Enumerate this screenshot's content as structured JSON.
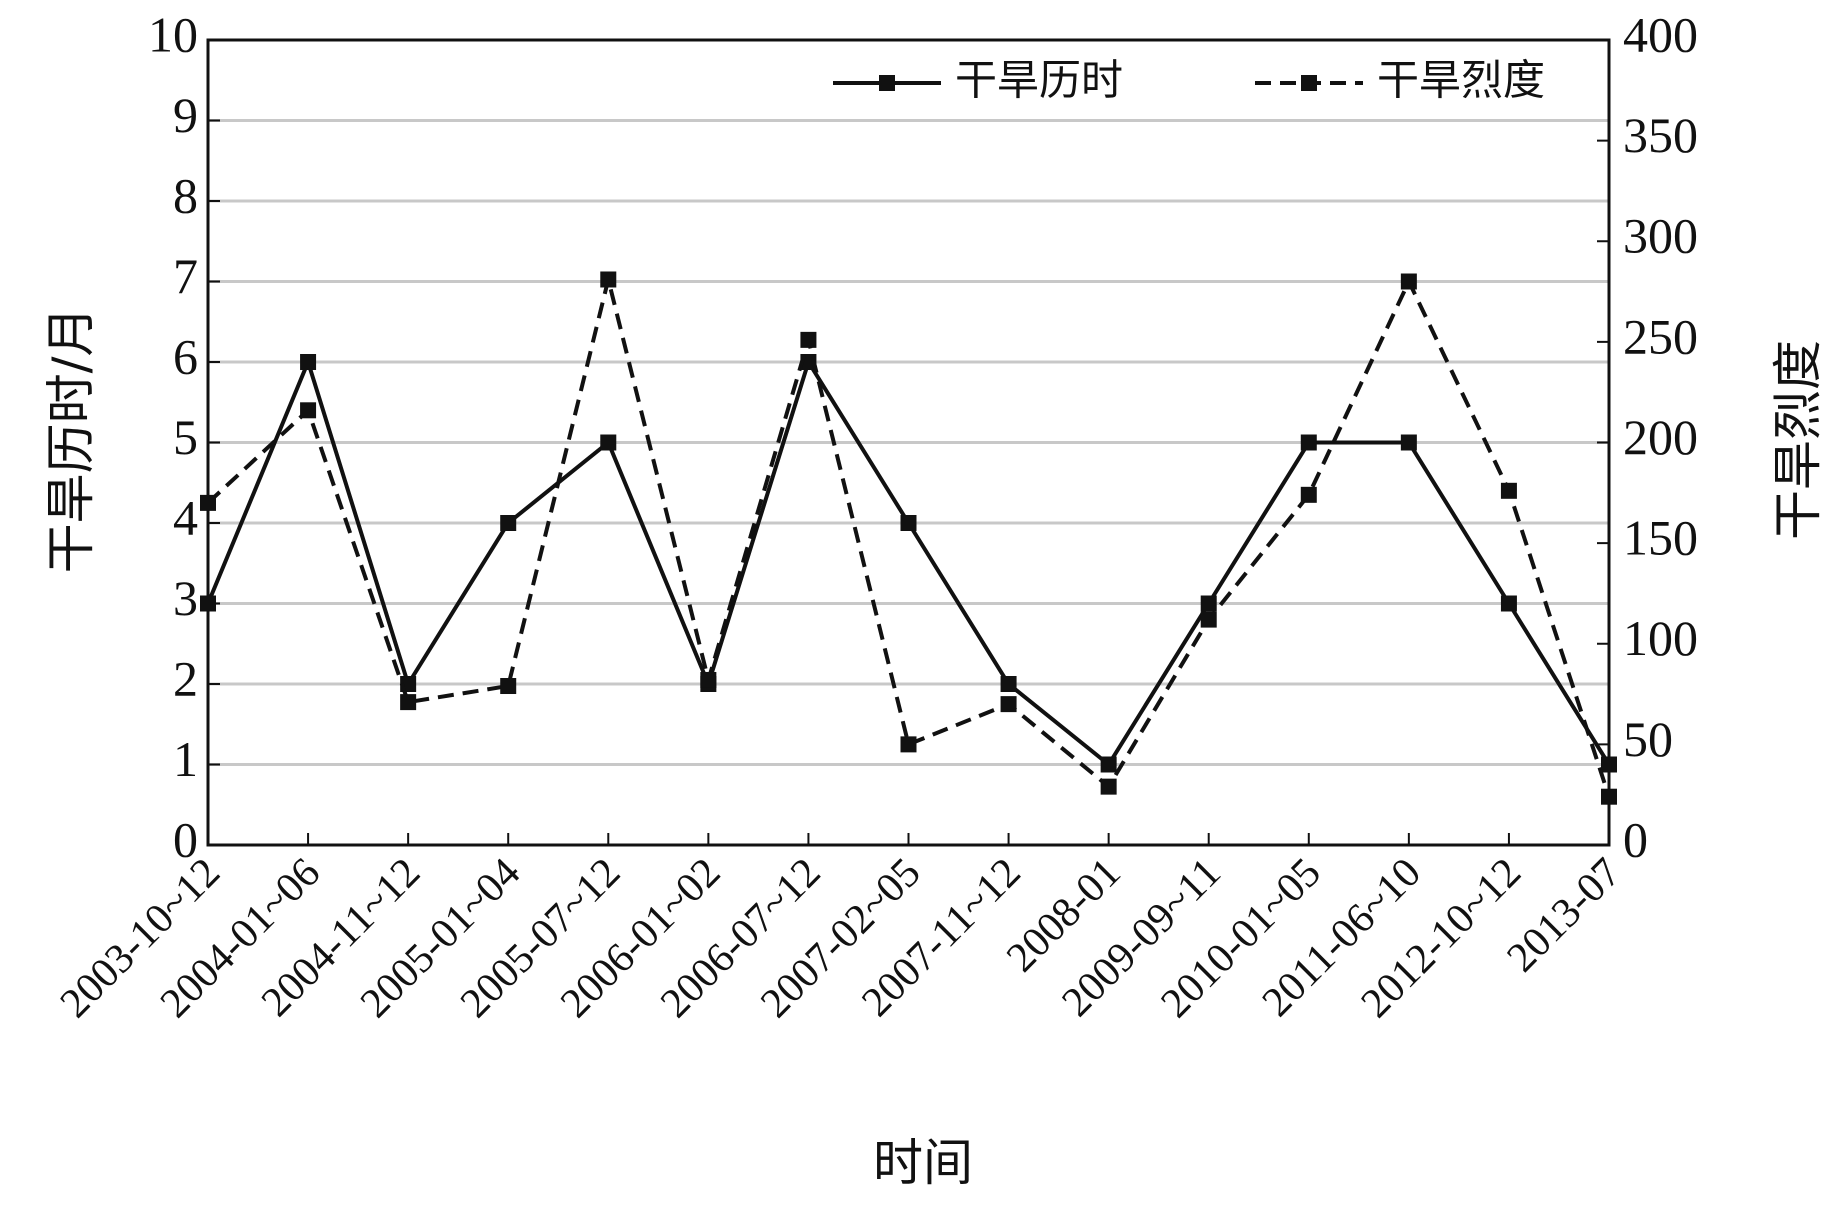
{
  "chart_data": {
    "type": "line",
    "x_label": "时间",
    "y_label": "干旱历时/月",
    "y2_label": "干旱烈度",
    "categories": [
      "2003-10~12",
      "2004-01~06",
      "2004-11~12",
      "2005-01~04",
      "2005-07~12",
      "2006-01~02",
      "2006-07~12",
      "2007-02~05",
      "2007-11~12",
      "2008-01",
      "2009-09~11",
      "2010-01~05",
      "2011-06~10",
      "2012-10~12",
      "2013-07"
    ],
    "series": [
      {
        "name": "干旱历时",
        "color": "#111111",
        "line_style": "solid",
        "values": [
          3,
          6,
          2,
          4,
          5,
          2,
          6,
          4,
          2,
          1,
          3,
          5,
          5,
          3,
          1
        ]
      },
      {
        "name": "干旱烈度",
        "color": "#111111",
        "line_style": "dashed",
        "axis": "y2",
        "values": [
          170,
          216,
          71,
          79,
          281,
          82,
          251,
          50,
          70,
          29,
          112,
          174,
          280,
          176,
          24
        ]
      }
    ],
    "ylim": [
      0,
      10
    ],
    "yticks": [
      0,
      1,
      2,
      3,
      4,
      5,
      6,
      7,
      8,
      9,
      10
    ],
    "y2lim": [
      0,
      400
    ],
    "y2ticks": [
      0,
      50,
      100,
      150,
      200,
      250,
      300,
      350,
      400
    ],
    "grid": true,
    "legend": "top-right"
  }
}
